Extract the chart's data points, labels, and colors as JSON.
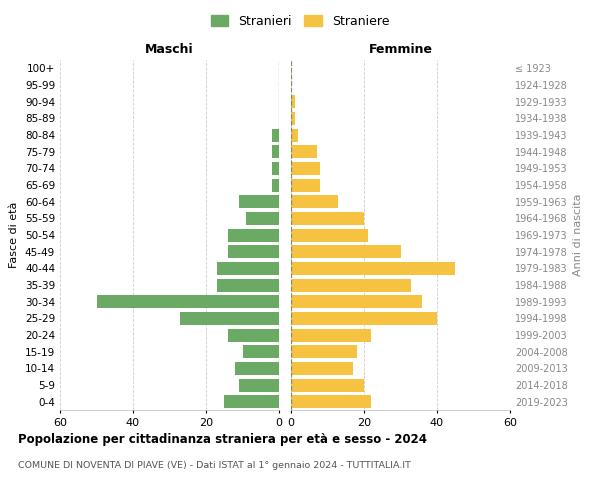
{
  "age_groups": [
    "0-4",
    "5-9",
    "10-14",
    "15-19",
    "20-24",
    "25-29",
    "30-34",
    "35-39",
    "40-44",
    "45-49",
    "50-54",
    "55-59",
    "60-64",
    "65-69",
    "70-74",
    "75-79",
    "80-84",
    "85-89",
    "90-94",
    "95-99",
    "100+"
  ],
  "birth_years": [
    "2019-2023",
    "2014-2018",
    "2009-2013",
    "2004-2008",
    "1999-2003",
    "1994-1998",
    "1989-1993",
    "1984-1988",
    "1979-1983",
    "1974-1978",
    "1969-1973",
    "1964-1968",
    "1959-1963",
    "1954-1958",
    "1949-1953",
    "1944-1948",
    "1939-1943",
    "1934-1938",
    "1929-1933",
    "1924-1928",
    "≤ 1923"
  ],
  "males": [
    15,
    11,
    12,
    10,
    14,
    27,
    50,
    17,
    17,
    14,
    14,
    9,
    11,
    2,
    2,
    2,
    2,
    0,
    0,
    0,
    0
  ],
  "females": [
    22,
    20,
    17,
    18,
    22,
    40,
    36,
    33,
    45,
    30,
    21,
    20,
    13,
    8,
    8,
    7,
    2,
    1,
    1,
    0,
    0
  ],
  "male_color": "#6aaa64",
  "female_color": "#f5c242",
  "background_color": "#ffffff",
  "grid_color": "#cccccc",
  "xlim": 60,
  "title": "Popolazione per cittadinanza straniera per età e sesso - 2024",
  "subtitle": "COMUNE DI NOVENTA DI PIAVE (VE) - Dati ISTAT al 1° gennaio 2024 - TUTTITALIA.IT",
  "ylabel_left": "Fasce di età",
  "ylabel_right": "Anni di nascita",
  "legend_males": "Stranieri",
  "legend_females": "Straniere",
  "maschi_label": "Maschi",
  "femmine_label": "Femmine"
}
